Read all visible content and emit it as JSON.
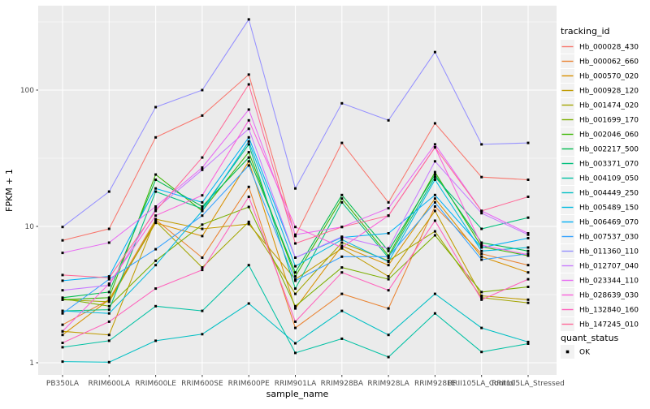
{
  "chart_data": {
    "type": "line",
    "title": "",
    "xlabel": "sample_name",
    "ylabel": "FPKM + 1",
    "y_scale": "log10",
    "ylim": [
      1,
      416
    ],
    "y_major_ticks": [
      1,
      10,
      100
    ],
    "y_minor_gridlines": [
      3.162,
      31.62,
      316.2
    ],
    "grid": "on",
    "legend_position": "right",
    "panel_background": "#EBEBEB",
    "gridline_color": "#FFFFFF",
    "tick_label_color": "#4D4D4D",
    "axis_title_color": "#000000",
    "legend_key_fill": "#F2F2F2",
    "point_marker": {
      "shape": "square",
      "color": "#000000",
      "size": 3
    },
    "legend_title": "tracking_id",
    "quant_legend": {
      "title": "quant_status",
      "items": [
        {
          "label": "OK",
          "marker": "black-square"
        }
      ]
    },
    "categories": [
      "PB350LA",
      "RRIM600LA",
      "RRIM600LE",
      "RRIM600SE",
      "RRIM600PE",
      "RRIM901LA",
      "RRIM928BA",
      "RRIM928LA",
      "RRIM928LE",
      "RRII105LA_Control",
      "RRII105LA_Stressed"
    ],
    "series": [
      {
        "name": "Hb_000028_430",
        "color": "#F8766D",
        "values": [
          7.9,
          9.6,
          45,
          65,
          130,
          8.5,
          41,
          15,
          57,
          23,
          22
        ]
      },
      {
        "name": "Hb_000062_660",
        "color": "#EA8331",
        "values": [
          1.9,
          2.9,
          11.2,
          5.9,
          19.5,
          1.8,
          3.2,
          2.5,
          14,
          6.3,
          5.2
        ]
      },
      {
        "name": "Hb_000570_020",
        "color": "#D89000",
        "values": [
          1.6,
          2.9,
          10.6,
          8.5,
          30,
          2.5,
          7.2,
          5.2,
          16,
          6.0,
          4.6
        ]
      },
      {
        "name": "Hb_000928_120",
        "color": "#C09B00",
        "values": [
          1.7,
          1.6,
          11.3,
          9.6,
          10.4,
          4.1,
          6.9,
          4.3,
          13,
          3.1,
          2.9
        ]
      },
      {
        "name": "Hb_001474_020",
        "color": "#A3A500",
        "values": [
          2.9,
          2.8,
          10.9,
          5.0,
          10.8,
          3.2,
          7.6,
          5.6,
          9.2,
          3.0,
          2.75
        ]
      },
      {
        "name": "Hb_001699_170",
        "color": "#7CAE00",
        "values": [
          2.95,
          2.6,
          5.6,
          10.3,
          13.9,
          2.6,
          5.0,
          4.1,
          8.6,
          3.3,
          3.6
        ]
      },
      {
        "name": "Hb_002046_060",
        "color": "#39B600",
        "values": [
          2.9,
          3.0,
          24,
          13,
          35,
          4.3,
          16,
          6.1,
          25,
          7.1,
          6.1
        ]
      },
      {
        "name": "Hb_002217_500",
        "color": "#00BB4E",
        "values": [
          3.0,
          3.3,
          22,
          14,
          32,
          4.6,
          17,
          6.6,
          24,
          7.6,
          6.6
        ]
      },
      {
        "name": "Hb_003371_070",
        "color": "#00BF7D",
        "values": [
          2.4,
          2.45,
          18,
          13.5,
          40,
          3.5,
          15,
          5.9,
          23,
          9.6,
          11.6
        ]
      },
      {
        "name": "Hb_004109_050",
        "color": "#00C1A3",
        "values": [
          1.3,
          1.45,
          2.6,
          2.4,
          5.2,
          1.18,
          1.5,
          1.1,
          2.3,
          1.2,
          1.38
        ]
      },
      {
        "name": "Hb_004449_250",
        "color": "#00BFC4",
        "values": [
          1.02,
          1.01,
          1.45,
          1.62,
          2.72,
          1.39,
          2.4,
          1.6,
          3.2,
          1.8,
          1.42
        ]
      },
      {
        "name": "Hb_005489_150",
        "color": "#00BAE0",
        "values": [
          2.4,
          2.3,
          5.2,
          13,
          42,
          5.1,
          8.0,
          5.5,
          22,
          6.6,
          7.0
        ]
      },
      {
        "name": "Hb_006469_070",
        "color": "#00B0F6",
        "values": [
          4.0,
          4.3,
          19,
          15,
          45,
          5.9,
          8.3,
          8.9,
          17,
          7.0,
          8.2
        ]
      },
      {
        "name": "Hb_007537_030",
        "color": "#35A2FF",
        "values": [
          2.3,
          4.1,
          6.8,
          12,
          28,
          4.0,
          6.0,
          6.0,
          15,
          5.7,
          6.3
        ]
      },
      {
        "name": "Hb_011360_110",
        "color": "#9590FF",
        "values": [
          9.9,
          18,
          75,
          100,
          330,
          19,
          80,
          60,
          190,
          40,
          41
        ]
      },
      {
        "name": "Hb_012707_040",
        "color": "#C77CFF",
        "values": [
          3.4,
          3.7,
          13.4,
          26,
          52,
          5.9,
          8.4,
          6.9,
          30,
          12.5,
          8.7
        ]
      },
      {
        "name": "Hb_023344_110",
        "color": "#E76BF3",
        "values": [
          6.4,
          7.6,
          14,
          27,
          72,
          8.7,
          9.9,
          13.6,
          40,
          13,
          8.9
        ]
      },
      {
        "name": "Hb_028639_030",
        "color": "#FA62DB",
        "values": [
          1.7,
          3.8,
          12,
          16.9,
          60,
          9.9,
          7.0,
          12,
          38,
          7.3,
          6.2
        ]
      },
      {
        "name": "Hb_132840_160",
        "color": "#FF62BC",
        "values": [
          1.4,
          2.0,
          3.5,
          4.8,
          16.5,
          2.0,
          4.6,
          3.4,
          11,
          2.9,
          4.1
        ]
      },
      {
        "name": "Hb_147245_010",
        "color": "#FF6A98",
        "values": [
          4.4,
          4.2,
          13,
          32,
          110,
          7.5,
          9.9,
          12,
          38,
          13,
          16.5
        ]
      }
    ]
  }
}
